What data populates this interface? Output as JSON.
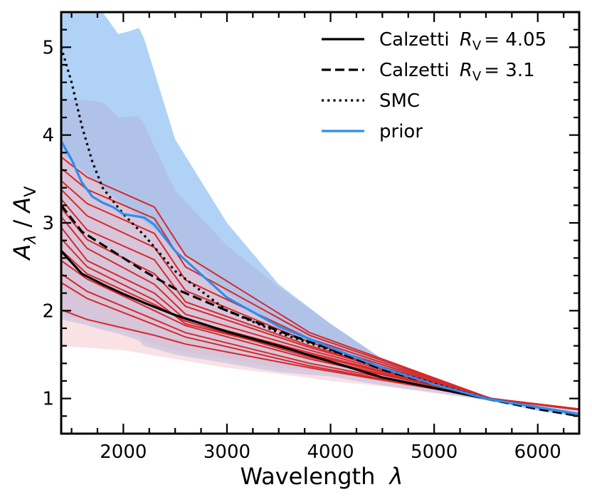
{
  "chart_data": {
    "type": "line",
    "title": "",
    "xlabel_text": "Wavelength",
    "xlabel_symbol": "λ",
    "ylabel_text": "A",
    "ylabel_sub": "λ",
    "ylabel_sep": " / ",
    "ylabel_text2": "A",
    "ylabel_sub2": "V",
    "xlim": [
      1400,
      6400
    ],
    "ylim": [
      0.6,
      5.4
    ],
    "xticks": [
      2000,
      3000,
      4000,
      5000,
      6000
    ],
    "yticks": [
      1,
      2,
      3,
      4,
      5
    ],
    "grid": false,
    "legend_position": "top-right",
    "legend": [
      {
        "name": "Calzetti",
        "r_sym": "R",
        "r_sub": "V",
        "eq": "= 4.05",
        "style": "solid"
      },
      {
        "name": "Calzetti",
        "r_sym": "R",
        "r_sub": "V",
        "eq": "= 3.1",
        "style": "dashed"
      },
      {
        "name": "SMC",
        "style": "dotted"
      },
      {
        "name": "prior",
        "style": "solid-blue"
      }
    ],
    "colors": {
      "prior": "#2b8ef0",
      "prior_band": "#a7cdf5",
      "prior_band_inner": "#b3b4dc",
      "posterior": "#d6292a",
      "posterior_band": "#f6c9ce",
      "reference": "#000000"
    },
    "series": [
      {
        "name": "Calzetti RV=4.05",
        "style": "solid",
        "x": [
          1400,
          1600,
          1800,
          2000,
          2200,
          2500,
          3000,
          3500,
          4000,
          4500,
          5000,
          5500,
          6000,
          6400
        ],
        "y": [
          2.68,
          2.42,
          2.3,
          2.19,
          2.09,
          1.95,
          1.76,
          1.6,
          1.42,
          1.24,
          1.12,
          1.0,
          0.9,
          0.82
        ]
      },
      {
        "name": "Calzetti RV=3.1",
        "style": "dashed",
        "x": [
          1400,
          1600,
          1800,
          2000,
          2200,
          2500,
          3000,
          3500,
          4000,
          4500,
          5000,
          5500,
          6000,
          6400
        ],
        "y": [
          3.2,
          2.9,
          2.75,
          2.6,
          2.45,
          2.25,
          2.0,
          1.77,
          1.56,
          1.33,
          1.16,
          1.0,
          0.88,
          0.8
        ]
      },
      {
        "name": "SMC",
        "style": "dotted",
        "x": [
          1400,
          1500,
          1600,
          1700,
          1800,
          2000,
          2200,
          2500,
          3000,
          3500,
          4000,
          4500,
          5000,
          5500,
          6000,
          6400
        ],
        "y": [
          5.0,
          4.6,
          4.1,
          3.7,
          3.4,
          3.1,
          2.86,
          2.45,
          2.0,
          1.75,
          1.55,
          1.35,
          1.17,
          1.0,
          0.9,
          0.81
        ]
      },
      {
        "name": "prior",
        "style": "solid-blue",
        "x": [
          1400,
          1500,
          1600,
          1700,
          1800,
          1900,
          2000,
          2100,
          2200,
          2300,
          2500,
          3000,
          3500,
          4000,
          4500,
          5000,
          5500,
          6000,
          6400
        ],
        "y": [
          3.93,
          3.72,
          3.46,
          3.3,
          3.23,
          3.18,
          3.1,
          3.08,
          3.06,
          2.98,
          2.68,
          2.15,
          1.82,
          1.58,
          1.35,
          1.16,
          1.0,
          0.9,
          0.82
        ]
      }
    ],
    "prior_band": {
      "x": [
        1400,
        1600,
        1800,
        1950,
        2050,
        2150,
        2200,
        2500,
        3000,
        3500,
        4000,
        4500,
        5000,
        5500,
        6000,
        6400
      ],
      "upper": [
        5.4,
        5.4,
        5.4,
        5.15,
        5.18,
        5.22,
        5.1,
        3.95,
        3.0,
        2.3,
        1.85,
        1.45,
        1.2,
        1.02,
        0.92,
        0.85
      ],
      "lower": [
        1.9,
        1.85,
        1.78,
        1.74,
        1.7,
        1.66,
        1.6,
        1.5,
        1.4,
        1.3,
        1.25,
        1.15,
        1.07,
        0.98,
        0.86,
        0.79
      ]
    },
    "posterior_band": {
      "x": [
        1400,
        2000,
        2500,
        3000,
        3500,
        4000,
        4500,
        5000,
        5500,
        6000,
        6400
      ],
      "upper": [
        3.8,
        3.2,
        2.75,
        2.2,
        1.8,
        1.55,
        1.35,
        1.15,
        1.0,
        0.92,
        0.88
      ],
      "lower": [
        1.6,
        1.55,
        1.45,
        1.35,
        1.28,
        1.2,
        1.14,
        1.06,
        0.99,
        0.91,
        0.87
      ]
    },
    "posterior_curves": {
      "x": [
        1400,
        1650,
        2300,
        2600,
        3800,
        5550,
        6400
      ],
      "y_values": [
        [
          3.75,
          3.52,
          3.18,
          2.63,
          1.75,
          1.0,
          0.88
        ],
        [
          3.62,
          3.38,
          3.05,
          2.5,
          1.72,
          1.0,
          0.87
        ],
        [
          3.48,
          3.22,
          2.88,
          2.35,
          1.68,
          1.0,
          0.87
        ],
        [
          3.38,
          3.08,
          2.72,
          2.23,
          1.64,
          1.0,
          0.88
        ],
        [
          3.27,
          2.92,
          2.58,
          2.1,
          1.6,
          1.0,
          0.88
        ],
        [
          3.17,
          2.81,
          2.42,
          2.05,
          1.58,
          1.0,
          0.87
        ],
        [
          3.07,
          2.71,
          2.3,
          1.96,
          1.55,
          1.0,
          0.88
        ],
        [
          2.95,
          2.57,
          2.2,
          1.9,
          1.52,
          1.0,
          0.87
        ],
        [
          2.82,
          2.5,
          2.12,
          1.85,
          1.5,
          1.0,
          0.88
        ],
        [
          2.69,
          2.42,
          2.07,
          1.88,
          1.47,
          1.0,
          0.88
        ],
        [
          2.57,
          2.36,
          2.0,
          1.83,
          1.45,
          1.0,
          0.87
        ],
        [
          2.42,
          2.22,
          1.9,
          1.75,
          1.4,
          1.0,
          0.88
        ],
        [
          2.32,
          2.14,
          1.84,
          1.7,
          1.37,
          1.0,
          0.87
        ],
        [
          2.01,
          1.9,
          1.72,
          1.62,
          1.35,
          1.0,
          0.87
        ]
      ]
    }
  }
}
